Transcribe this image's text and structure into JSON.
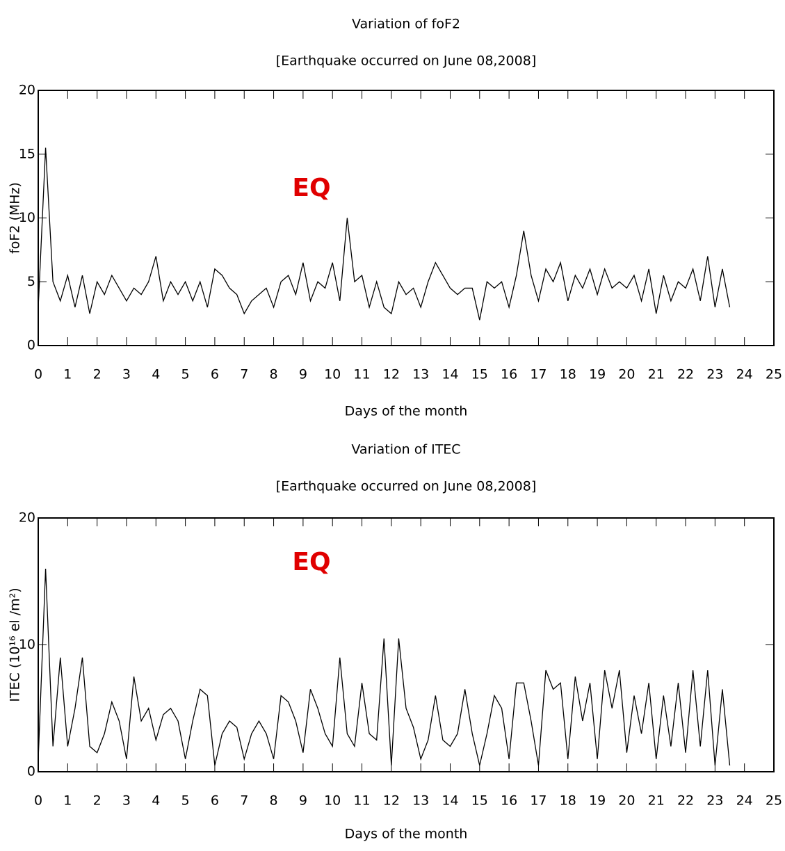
{
  "chart_data": [
    {
      "type": "line",
      "title": "Variation of foF2",
      "subtitle": "[Earthquake occurred on June 08,2008]",
      "xlabel": "Days of the month",
      "ylabel": "foF2 (MHz)",
      "annotations": [
        "EQ"
      ],
      "x": [
        0,
        0.25,
        0.5,
        0.75,
        1,
        1.25,
        1.5,
        1.75,
        2,
        2.25,
        2.5,
        2.75,
        3,
        3.25,
        3.5,
        3.75,
        4,
        4.25,
        4.5,
        4.75,
        5,
        5.25,
        5.5,
        5.75,
        6,
        6.25,
        6.5,
        6.75,
        7,
        7.25,
        7.5,
        7.75,
        8,
        8.25,
        8.5,
        8.75,
        9,
        9.25,
        9.5,
        9.75,
        10,
        10.25,
        10.5,
        10.75,
        11,
        11.25,
        11.5,
        11.75,
        12,
        12.25,
        12.5,
        12.75,
        13,
        13.25,
        13.5,
        13.75,
        14,
        14.25,
        14.5,
        14.75,
        15,
        15.25,
        15.5,
        15.75,
        16,
        16.25,
        16.5,
        16.75,
        17,
        17.25,
        17.5,
        17.75,
        18,
        18.25,
        18.5,
        18.75,
        19,
        19.25,
        19.5,
        19.75,
        20,
        20.25,
        20.5,
        20.75,
        21,
        21.25,
        21.5,
        21.75,
        22,
        22.25,
        22.5,
        22.75,
        23,
        23.25,
        23.5
      ],
      "series": [
        {
          "color": "#000000",
          "values": [
            3,
            15.5,
            5,
            3.5,
            5.5,
            3,
            5.5,
            2.5,
            5,
            4,
            5.5,
            4.5,
            3.5,
            4.5,
            4,
            5,
            7,
            3.5,
            5,
            4,
            5,
            3.5,
            5,
            3,
            6,
            5.5,
            4.5,
            4,
            2.5,
            3.5,
            4,
            4.5,
            3,
            5,
            5.5,
            4,
            6.5,
            3.5,
            5,
            4.5,
            6.5,
            3.5,
            10,
            5,
            5.5,
            3,
            5,
            3,
            2.5,
            5,
            4,
            4.5,
            3,
            5,
            6.5,
            5.5,
            4.5,
            4,
            4.5,
            4.5,
            2,
            5,
            4.5,
            5,
            3,
            5.5,
            9,
            5.5,
            3.5,
            6,
            5,
            6.5,
            3.5,
            5.5,
            4.5,
            6,
            4,
            6,
            4.5,
            5,
            4.5,
            5.5,
            3.5,
            6,
            2.5,
            5.5,
            3.5,
            5,
            4.5,
            6,
            3.5,
            7,
            3,
            6,
            3
          ]
        }
      ],
      "xlim": [
        0,
        25
      ],
      "ylim": [
        0,
        20
      ],
      "xticks": [
        0,
        1,
        2,
        3,
        4,
        5,
        6,
        7,
        8,
        9,
        10,
        11,
        12,
        13,
        14,
        15,
        16,
        17,
        18,
        19,
        20,
        21,
        22,
        23,
        24,
        25
      ],
      "yticks": [
        0,
        5,
        10,
        15,
        20
      ]
    },
    {
      "type": "line",
      "title": "Variation of ITEC",
      "subtitle": "[Earthquake occurred on June 08,2008]",
      "xlabel": "Days of the month",
      "ylabel": "ITEC (10¹⁶ el /m²)",
      "annotations": [
        "EQ"
      ],
      "x": [
        0,
        0.25,
        0.5,
        0.75,
        1,
        1.25,
        1.5,
        1.75,
        2,
        2.25,
        2.5,
        2.75,
        3,
        3.25,
        3.5,
        3.75,
        4,
        4.25,
        4.5,
        4.75,
        5,
        5.25,
        5.5,
        5.75,
        6,
        6.25,
        6.5,
        6.75,
        7,
        7.25,
        7.5,
        7.75,
        8,
        8.25,
        8.5,
        8.75,
        9,
        9.25,
        9.5,
        9.75,
        10,
        10.25,
        10.5,
        10.75,
        11,
        11.25,
        11.5,
        11.75,
        12,
        12.25,
        12.5,
        12.75,
        13,
        13.25,
        13.5,
        13.75,
        14,
        14.25,
        14.5,
        14.75,
        15,
        15.25,
        15.5,
        15.75,
        16,
        16.25,
        16.5,
        16.75,
        17,
        17.25,
        17.5,
        17.75,
        18,
        18.25,
        18.5,
        18.75,
        19,
        19.25,
        19.5,
        19.75,
        20,
        20.25,
        20.5,
        20.75,
        21,
        21.25,
        21.5,
        21.75,
        22,
        22.25,
        22.5,
        22.75,
        23,
        23.25,
        23.5
      ],
      "series": [
        {
          "color": "#000000",
          "values": [
            1,
            16,
            2,
            9,
            2,
            5,
            9,
            2,
            1.5,
            3,
            5.5,
            4,
            1,
            7.5,
            4,
            5,
            2.5,
            4.5,
            5,
            4,
            1,
            4,
            6.5,
            6,
            0.5,
            3,
            4,
            3.5,
            1,
            3,
            4,
            3,
            1,
            6,
            5.5,
            4,
            1.5,
            6.5,
            5,
            3,
            2,
            9,
            3,
            2,
            7,
            3,
            2.5,
            10.5,
            0.5,
            10.5,
            5,
            3.5,
            1,
            2.5,
            6,
            2.5,
            2,
            3,
            6.5,
            3,
            0.5,
            3,
            6,
            5,
            1,
            7,
            7,
            4,
            0.5,
            8,
            6.5,
            7,
            1,
            7.5,
            4,
            7,
            1,
            8,
            5,
            8,
            1.5,
            6,
            3,
            7,
            1,
            6,
            2,
            7,
            1.5,
            8,
            2,
            8,
            0.5,
            6.5,
            0.5
          ]
        }
      ],
      "xlim": [
        0,
        25
      ],
      "ylim": [
        0,
        20
      ],
      "xticks": [
        0,
        1,
        2,
        3,
        4,
        5,
        6,
        7,
        8,
        9,
        10,
        11,
        12,
        13,
        14,
        15,
        16,
        17,
        18,
        19,
        20,
        21,
        22,
        23,
        24,
        25
      ],
      "yticks": [
        0,
        10,
        20
      ]
    }
  ]
}
